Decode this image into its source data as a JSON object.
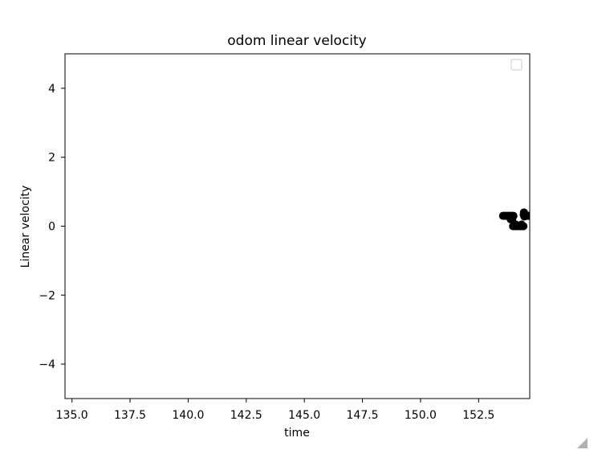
{
  "chart_data": {
    "type": "scatter",
    "title": "odom linear velocity",
    "xlabel": "time",
    "ylabel": "Linear velocity",
    "xlim": [
      134.7,
      154.7
    ],
    "ylim": [
      -5,
      5
    ],
    "x_ticks": [
      135.0,
      137.5,
      140.0,
      142.5,
      145.0,
      147.5,
      150.0,
      152.5
    ],
    "x_tick_labels": [
      "135.0",
      "137.5",
      "140.0",
      "142.5",
      "145.0",
      "147.5",
      "150.0",
      "152.5"
    ],
    "y_ticks": [
      -4,
      -2,
      0,
      2,
      4
    ],
    "y_tick_labels": [
      "−4",
      "−2",
      "0",
      "2",
      "4"
    ],
    "legend": {
      "position": "upper right",
      "entries": []
    },
    "marker_color": "#000000",
    "series": [
      {
        "points": [
          [
            153.55,
            0.3
          ],
          [
            153.6,
            0.3
          ],
          [
            153.65,
            0.3
          ],
          [
            153.7,
            0.3
          ],
          [
            153.75,
            0.3
          ],
          [
            153.8,
            0.3
          ],
          [
            153.85,
            0.3
          ],
          [
            153.9,
            0.3
          ],
          [
            153.95,
            0.3
          ],
          [
            154.0,
            0.3
          ],
          [
            153.88,
            0.2
          ],
          [
            153.95,
            0.22
          ],
          [
            153.98,
            0.0
          ],
          [
            154.03,
            0.0
          ],
          [
            154.08,
            0.0
          ],
          [
            154.13,
            0.0
          ],
          [
            154.18,
            0.0
          ],
          [
            154.23,
            0.0
          ],
          [
            154.28,
            0.0
          ],
          [
            154.33,
            0.0
          ],
          [
            154.38,
            0.0
          ],
          [
            154.43,
            0.0
          ],
          [
            154.1,
            0.05
          ],
          [
            154.35,
            0.05
          ],
          [
            154.44,
            0.33
          ],
          [
            154.47,
            0.28
          ],
          [
            154.52,
            0.3
          ],
          [
            154.57,
            0.3
          ],
          [
            154.62,
            0.3
          ],
          [
            154.67,
            0.3
          ],
          [
            154.45,
            0.4
          ]
        ]
      }
    ]
  }
}
